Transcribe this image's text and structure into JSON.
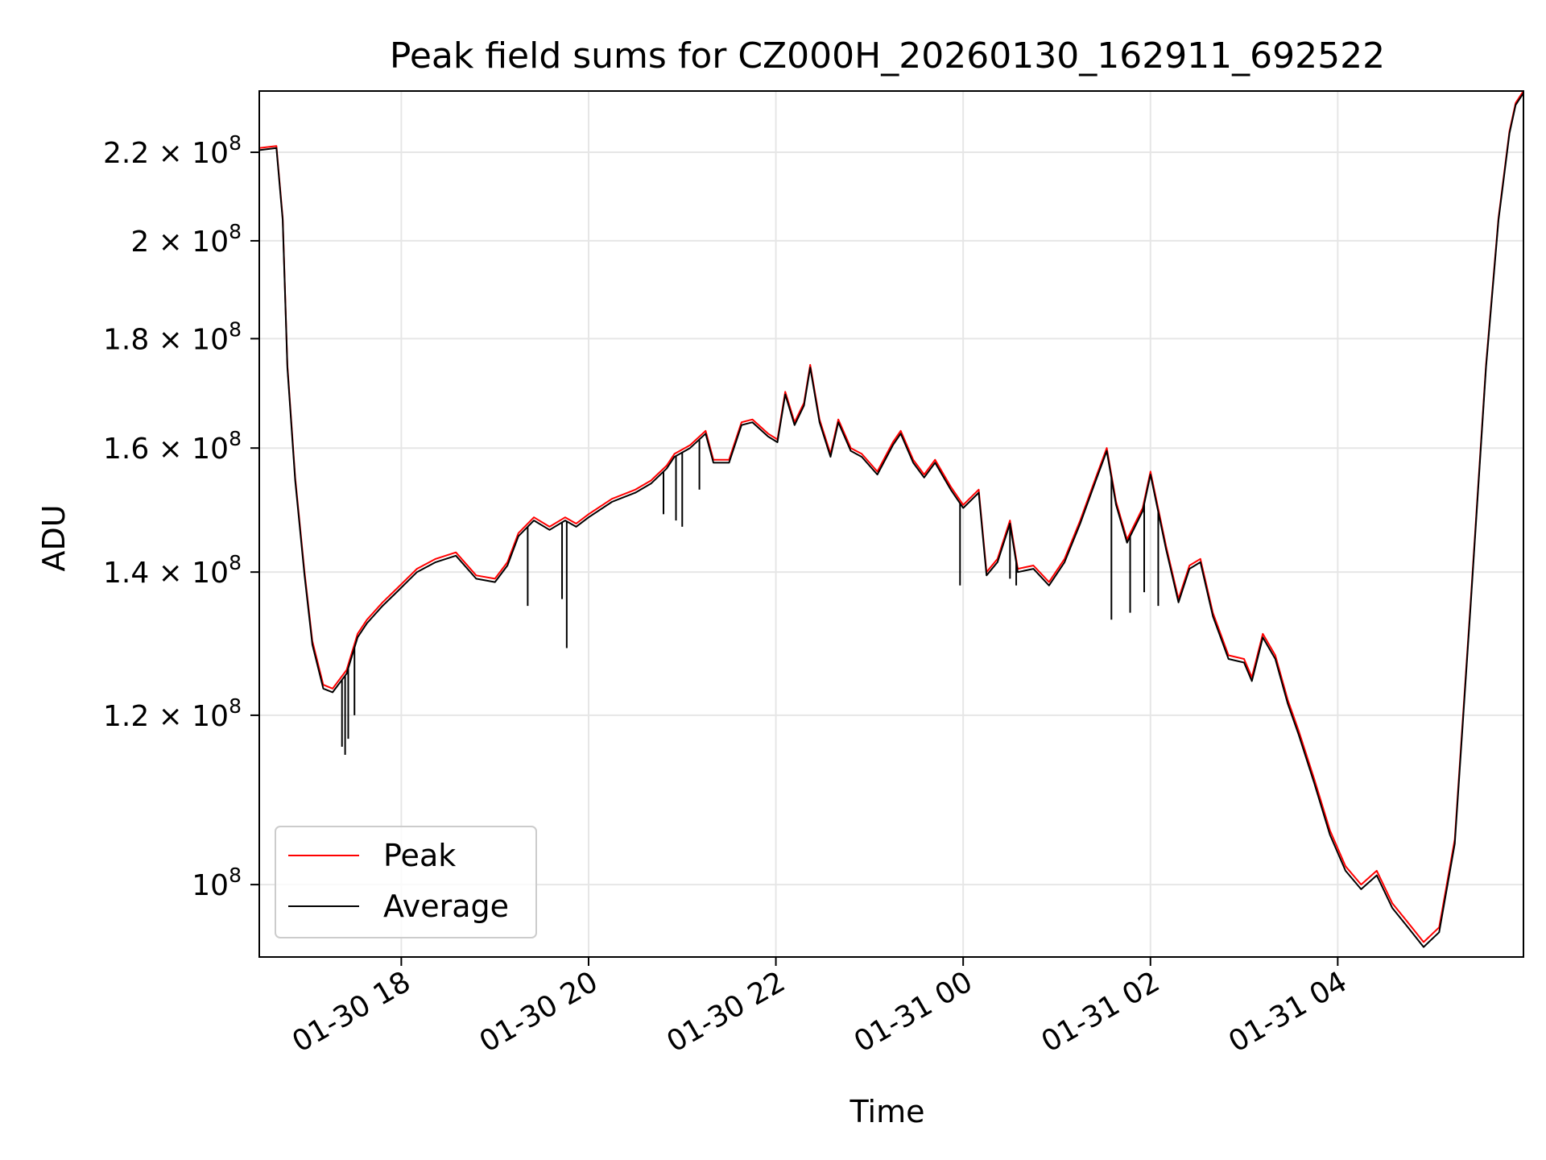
{
  "chart_data": {
    "type": "line",
    "title": "Peak field sums for CZ000H_20260130_162911_692522",
    "xlabel": "Time",
    "ylabel": "ADU",
    "y_scale": "log",
    "x_range": [
      "2026-01-30 16:29",
      "2026-01-31 05:59"
    ],
    "ylim": [
      92500000,
      235000000
    ],
    "grid": true,
    "legend_position": "lower-left",
    "x_ticks": [
      {
        "t": "2026-01-30 18:00",
        "label": "01-30 18"
      },
      {
        "t": "2026-01-30 20:00",
        "label": "01-30 20"
      },
      {
        "t": "2026-01-30 22:00",
        "label": "01-30 22"
      },
      {
        "t": "2026-01-31 00:00",
        "label": "01-31 00"
      },
      {
        "t": "2026-01-31 02:00",
        "label": "01-31 02"
      },
      {
        "t": "2026-01-31 04:00",
        "label": "01-31 04"
      }
    ],
    "y_ticks": [
      {
        "value": 100000000,
        "mantissa": "",
        "exp": "8"
      },
      {
        "value": 120000000,
        "mantissa": "1.2",
        "exp": "8"
      },
      {
        "value": 140000000,
        "mantissa": "1.4",
        "exp": "8"
      },
      {
        "value": 160000000,
        "mantissa": "1.6",
        "exp": "8"
      },
      {
        "value": 180000000,
        "mantissa": "1.8",
        "exp": "8"
      },
      {
        "value": 200000000,
        "mantissa": "2",
        "exp": "8"
      },
      {
        "value": 220000000,
        "mantissa": "2.2",
        "exp": "8"
      }
    ],
    "series": [
      {
        "name": "Peak",
        "color": "#ff0000",
        "x": [
          "2026-01-30 16:29",
          "2026-01-30 16:40",
          "2026-01-30 16:44",
          "2026-01-30 16:47",
          "2026-01-30 16:52",
          "2026-01-30 16:58",
          "2026-01-30 17:03",
          "2026-01-30 17:10",
          "2026-01-30 17:16",
          "2026-01-30 17:25",
          "2026-01-30 17:32",
          "2026-01-30 17:38",
          "2026-01-30 17:42",
          "2026-01-30 17:48",
          "2026-01-30 17:57",
          "2026-01-30 18:10",
          "2026-01-30 18:22",
          "2026-01-30 18:35",
          "2026-01-30 18:48",
          "2026-01-30 19:00",
          "2026-01-30 19:08",
          "2026-01-30 19:15",
          "2026-01-30 19:25",
          "2026-01-30 19:35",
          "2026-01-30 19:45",
          "2026-01-30 19:52",
          "2026-01-30 20:00",
          "2026-01-30 20:15",
          "2026-01-30 20:30",
          "2026-01-30 20:40",
          "2026-01-30 20:50",
          "2026-01-30 20:55",
          "2026-01-30 21:05",
          "2026-01-30 21:15",
          "2026-01-30 21:20",
          "2026-01-30 21:30",
          "2026-01-30 21:38",
          "2026-01-30 21:45",
          "2026-01-30 21:55",
          "2026-01-30 22:01",
          "2026-01-30 22:06",
          "2026-01-30 22:12",
          "2026-01-30 22:18",
          "2026-01-30 22:22",
          "2026-01-30 22:28",
          "2026-01-30 22:35",
          "2026-01-30 22:40",
          "2026-01-30 22:48",
          "2026-01-30 22:55",
          "2026-01-30 23:05",
          "2026-01-30 23:15",
          "2026-01-30 23:20",
          "2026-01-30 23:28",
          "2026-01-30 23:35",
          "2026-01-30 23:42",
          "2026-01-30 23:52",
          "2026-01-31 00:00",
          "2026-01-31 00:10",
          "2026-01-31 00:15",
          "2026-01-31 00:22",
          "2026-01-31 00:30",
          "2026-01-31 00:35",
          "2026-01-31 00:45",
          "2026-01-31 00:55",
          "2026-01-31 01:05",
          "2026-01-31 01:15",
          "2026-01-31 01:25",
          "2026-01-31 01:32",
          "2026-01-31 01:38",
          "2026-01-31 01:45",
          "2026-01-31 01:55",
          "2026-01-31 02:00",
          "2026-01-31 02:10",
          "2026-01-31 02:18",
          "2026-01-31 02:25",
          "2026-01-31 02:32",
          "2026-01-31 02:40",
          "2026-01-31 02:50",
          "2026-01-31 03:00",
          "2026-01-31 03:05",
          "2026-01-31 03:12",
          "2026-01-31 03:20",
          "2026-01-31 03:28",
          "2026-01-31 03:35",
          "2026-01-31 03:45",
          "2026-01-31 03:55",
          "2026-01-31 04:05",
          "2026-01-31 04:15",
          "2026-01-31 04:25",
          "2026-01-31 04:35",
          "2026-01-31 04:45",
          "2026-01-31 04:55",
          "2026-01-31 05:05",
          "2026-01-31 05:15",
          "2026-01-31 05:25",
          "2026-01-31 05:35",
          "2026-01-31 05:43",
          "2026-01-31 05:50",
          "2026-01-31 05:54",
          "2026-01-31 05:59"
        ],
        "y": [
          221000000,
          221500000,
          205000000,
          175000000,
          155000000,
          140000000,
          130000000,
          124000000,
          123500000,
          126000000,
          131000000,
          133000000,
          134000000,
          135500000,
          137500000,
          140500000,
          142000000,
          143000000,
          139500000,
          139000000,
          141500000,
          146000000,
          148500000,
          147000000,
          148500000,
          147500000,
          149000000,
          151500000,
          153000000,
          154500000,
          157000000,
          159000000,
          160500000,
          163000000,
          158000000,
          158000000,
          164500000,
          165000000,
          162500000,
          161500000,
          170000000,
          164500000,
          168000000,
          175000000,
          165000000,
          159000000,
          165000000,
          160000000,
          159000000,
          156000000,
          161000000,
          163000000,
          158000000,
          155500000,
          158000000,
          153500000,
          150500000,
          153000000,
          140000000,
          142000000,
          148000000,
          140500000,
          141000000,
          138500000,
          142000000,
          148000000,
          155000000,
          160000000,
          151000000,
          145000000,
          150000000,
          156000000,
          144000000,
          136000000,
          141000000,
          142000000,
          134000000,
          128000000,
          127500000,
          125000000,
          131000000,
          128000000,
          122000000,
          118000000,
          112000000,
          106000000,
          102000000,
          100000000,
          101500000,
          98000000,
          96000000,
          94000000,
          95500000,
          105000000,
          135000000,
          175000000,
          205000000,
          225000000,
          232000000,
          235000000
        ]
      },
      {
        "name": "Average",
        "color": "#000000",
        "x": [
          "2026-01-30 16:29",
          "2026-01-30 16:40",
          "2026-01-30 16:44",
          "2026-01-30 16:47",
          "2026-01-30 16:52",
          "2026-01-30 16:58",
          "2026-01-30 17:03",
          "2026-01-30 17:10",
          "2026-01-30 17:16",
          "2026-01-30 17:25",
          "2026-01-30 17:32",
          "2026-01-30 17:38",
          "2026-01-30 17:42",
          "2026-01-30 17:48",
          "2026-01-30 17:57",
          "2026-01-30 18:10",
          "2026-01-30 18:22",
          "2026-01-30 18:35",
          "2026-01-30 18:48",
          "2026-01-30 19:00",
          "2026-01-30 19:08",
          "2026-01-30 19:15",
          "2026-01-30 19:25",
          "2026-01-30 19:35",
          "2026-01-30 19:45",
          "2026-01-30 19:52",
          "2026-01-30 20:00",
          "2026-01-30 20:15",
          "2026-01-30 20:30",
          "2026-01-30 20:40",
          "2026-01-30 20:50",
          "2026-01-30 20:55",
          "2026-01-30 21:05",
          "2026-01-30 21:15",
          "2026-01-30 21:20",
          "2026-01-30 21:30",
          "2026-01-30 21:38",
          "2026-01-30 21:45",
          "2026-01-30 21:55",
          "2026-01-30 22:01",
          "2026-01-30 22:06",
          "2026-01-30 22:12",
          "2026-01-30 22:18",
          "2026-01-30 22:22",
          "2026-01-30 22:28",
          "2026-01-30 22:35",
          "2026-01-30 22:40",
          "2026-01-30 22:48",
          "2026-01-30 22:55",
          "2026-01-30 23:05",
          "2026-01-30 23:15",
          "2026-01-30 23:20",
          "2026-01-30 23:28",
          "2026-01-30 23:35",
          "2026-01-30 23:42",
          "2026-01-30 23:52",
          "2026-01-31 00:00",
          "2026-01-31 00:10",
          "2026-01-31 00:15",
          "2026-01-31 00:22",
          "2026-01-31 00:30",
          "2026-01-31 00:35",
          "2026-01-31 00:45",
          "2026-01-31 00:55",
          "2026-01-31 01:05",
          "2026-01-31 01:15",
          "2026-01-31 01:25",
          "2026-01-31 01:32",
          "2026-01-31 01:38",
          "2026-01-31 01:45",
          "2026-01-31 01:55",
          "2026-01-31 02:00",
          "2026-01-31 02:10",
          "2026-01-31 02:18",
          "2026-01-31 02:25",
          "2026-01-31 02:32",
          "2026-01-31 02:40",
          "2026-01-31 02:50",
          "2026-01-31 03:00",
          "2026-01-31 03:05",
          "2026-01-31 03:12",
          "2026-01-31 03:20",
          "2026-01-31 03:28",
          "2026-01-31 03:35",
          "2026-01-31 03:45",
          "2026-01-31 03:55",
          "2026-01-31 04:05",
          "2026-01-31 04:15",
          "2026-01-31 04:25",
          "2026-01-31 04:35",
          "2026-01-31 04:45",
          "2026-01-31 04:55",
          "2026-01-31 05:05",
          "2026-01-31 05:15",
          "2026-01-31 05:25",
          "2026-01-31 05:35",
          "2026-01-31 05:43",
          "2026-01-31 05:50",
          "2026-01-31 05:54",
          "2026-01-31 05:59"
        ],
        "y": [
          220500000,
          221000000,
          204500000,
          174500000,
          154500000,
          139500000,
          129500000,
          123500000,
          123000000,
          125500000,
          130500000,
          132500000,
          133500000,
          135000000,
          137000000,
          140000000,
          141500000,
          142500000,
          139000000,
          138500000,
          141000000,
          145500000,
          148000000,
          146500000,
          148000000,
          147000000,
          148500000,
          151000000,
          152500000,
          154000000,
          156500000,
          158500000,
          160000000,
          162500000,
          157500000,
          157500000,
          164000000,
          164500000,
          162000000,
          161000000,
          169500000,
          164000000,
          167500000,
          174500000,
          164500000,
          158500000,
          164500000,
          159500000,
          158500000,
          155500000,
          160500000,
          162500000,
          157500000,
          155000000,
          157500000,
          153000000,
          150000000,
          152500000,
          139500000,
          141500000,
          147500000,
          140000000,
          140500000,
          138000000,
          141500000,
          147500000,
          154500000,
          159500000,
          150500000,
          144500000,
          149500000,
          155500000,
          143500000,
          135500000,
          140500000,
          141500000,
          133500000,
          127500000,
          127000000,
          124500000,
          130500000,
          127500000,
          121500000,
          117500000,
          111500000,
          105500000,
          101500000,
          99500000,
          101000000,
          97500000,
          95500000,
          93500000,
          95000000,
          104500000,
          134500000,
          174500000,
          204500000,
          224500000,
          231500000,
          234500000
        ]
      }
    ],
    "dips": [
      {
        "series": "Average",
        "t": "2026-01-30 17:22",
        "low": 116000000
      },
      {
        "series": "Average",
        "t": "2026-01-30 17:24",
        "low": 115000000
      },
      {
        "series": "Average",
        "t": "2026-01-30 17:26",
        "low": 117000000
      },
      {
        "series": "Average",
        "t": "2026-01-30 17:30",
        "low": 120000000
      },
      {
        "series": "Average",
        "t": "2026-01-30 19:21",
        "low": 135000000
      },
      {
        "series": "Average",
        "t": "2026-01-30 19:43",
        "low": 136000000
      },
      {
        "series": "Average",
        "t": "2026-01-30 19:46",
        "low": 129000000
      },
      {
        "series": "Average",
        "t": "2026-01-30 20:48",
        "low": 149000000
      },
      {
        "series": "Average",
        "t": "2026-01-30 20:56",
        "low": 148000000
      },
      {
        "series": "Average",
        "t": "2026-01-30 21:00",
        "low": 147000000
      },
      {
        "series": "Average",
        "t": "2026-01-30 21:11",
        "low": 153000000
      },
      {
        "series": "Average",
        "t": "2026-01-30 23:58",
        "low": 138000000
      },
      {
        "series": "Average",
        "t": "2026-01-31 00:30",
        "low": 139000000
      },
      {
        "series": "Average",
        "t": "2026-01-31 00:34",
        "low": 138000000
      },
      {
        "series": "Average",
        "t": "2026-01-31 01:35",
        "low": 133000000
      },
      {
        "series": "Average",
        "t": "2026-01-31 01:47",
        "low": 134000000
      },
      {
        "series": "Average",
        "t": "2026-01-31 01:56",
        "low": 137000000
      },
      {
        "series": "Average",
        "t": "2026-01-31 02:05",
        "low": 135000000
      }
    ]
  }
}
